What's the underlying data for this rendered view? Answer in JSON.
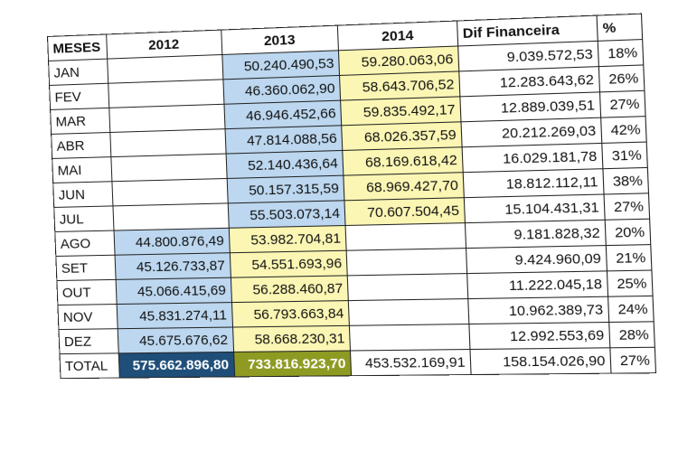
{
  "table": {
    "header": [
      "MESES",
      "2012",
      "2013",
      "2014",
      "Dif Financeira",
      "%"
    ],
    "rows": [
      [
        "JAN",
        null,
        "50.240.490,53",
        "59.280.063,06",
        "9.039.572,53",
        "18%"
      ],
      [
        "FEV",
        null,
        "46.360.062,90",
        "58.643.706,52",
        "12.283.643,62",
        "26%"
      ],
      [
        "MAR",
        null,
        "46.946.452,66",
        "59.835.492,17",
        "12.889.039,51",
        "27%"
      ],
      [
        "ABR",
        null,
        "47.814.088,56",
        "68.026.357,59",
        "20.212.269,03",
        "42%"
      ],
      [
        "MAI",
        null,
        "52.140.436,64",
        "68.169.618,42",
        "16.029.181,78",
        "31%"
      ],
      [
        "JUN",
        null,
        "50.157.315,59",
        "68.969.427,70",
        "18.812.112,11",
        "38%"
      ],
      [
        "JUL",
        null,
        "55.503.073,14",
        "70.607.504,45",
        "15.104.431,31",
        "27%"
      ],
      [
        "AGO",
        "44.800.876,49",
        "53.982.704,81",
        null,
        "9.181.828,32",
        "20%"
      ],
      [
        "SET",
        "45.126.733,87",
        "54.551.693,96",
        null,
        "9.424.960,09",
        "21%"
      ],
      [
        "OUT",
        "45.066.415,69",
        "56.288.460,87",
        null,
        "11.222.045,18",
        "25%"
      ],
      [
        "NOV",
        "45.831.274,11",
        "56.793.663,84",
        null,
        "10.962.389,73",
        "24%"
      ],
      [
        "DEZ",
        "45.675.676,62",
        "58.668.230,31",
        null,
        "12.992.553,69",
        "28%"
      ]
    ],
    "total": [
      "TOTAL",
      "575.662.896,80",
      "733.816.923,70",
      "453.532.169,91",
      "158.154.026,90",
      "27%"
    ]
  }
}
